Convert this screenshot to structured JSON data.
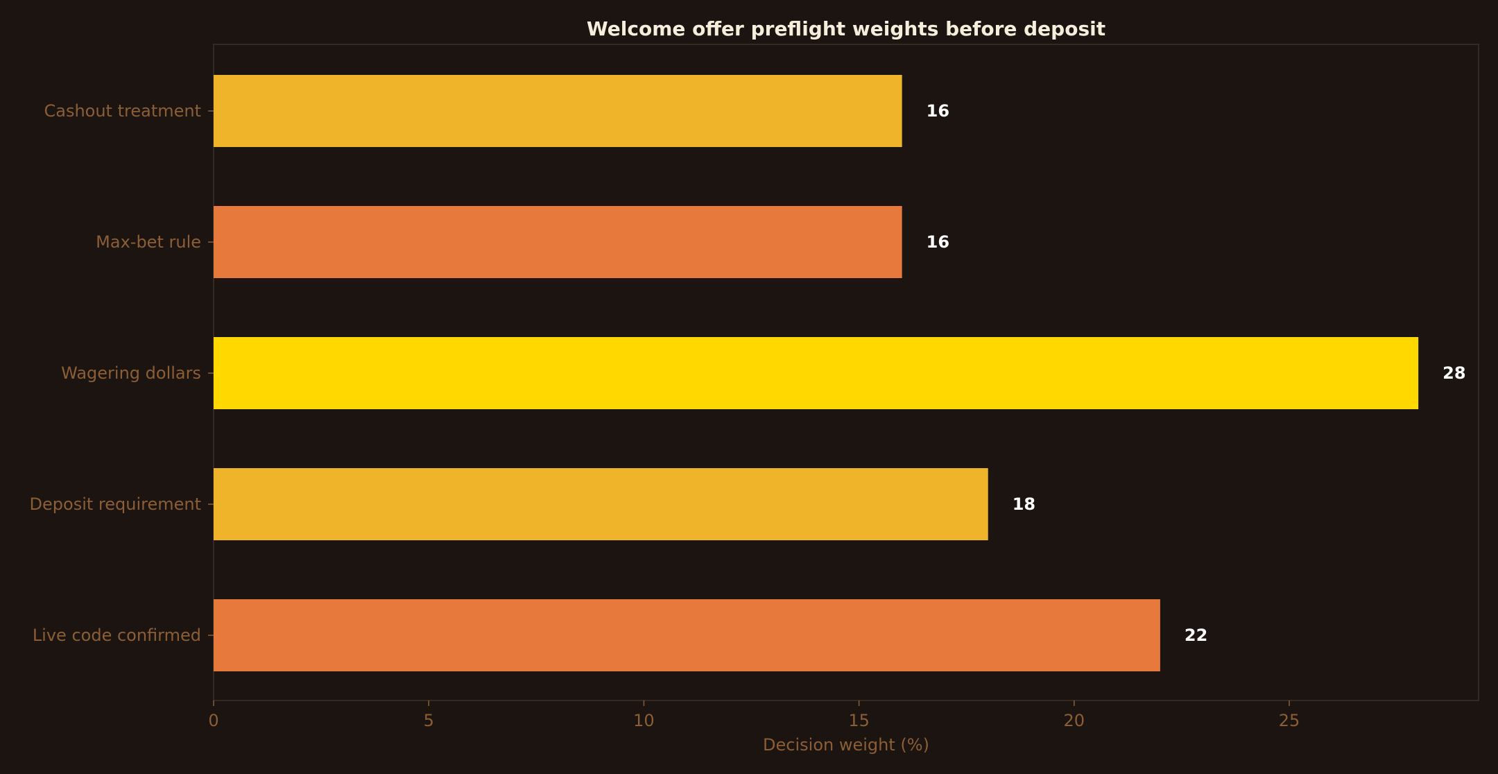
{
  "chart_data": {
    "type": "bar",
    "orientation": "horizontal",
    "title": "Welcome offer preflight weights before deposit",
    "xlabel": "Decision weight (%)",
    "ylabel": "",
    "xlim": [
      0,
      29.4
    ],
    "xticks": [
      0,
      5,
      10,
      15,
      20,
      25
    ],
    "categories": [
      "Cashout treatment",
      "Max-bet rule",
      "Wagering dollars",
      "Deposit requirement",
      "Live code confirmed"
    ],
    "values": [
      16,
      16,
      28,
      18,
      22
    ],
    "colors": [
      "#efb429",
      "#e8793c",
      "#ffd800",
      "#efb429",
      "#e8793c"
    ],
    "grid": false,
    "legend": "none"
  },
  "colors": {
    "background": "#1c1411",
    "axes_frame": "#3d3129",
    "axis_text": "#8c5e35",
    "title_text": "#f6eedc",
    "value_text": "#ffffff"
  }
}
